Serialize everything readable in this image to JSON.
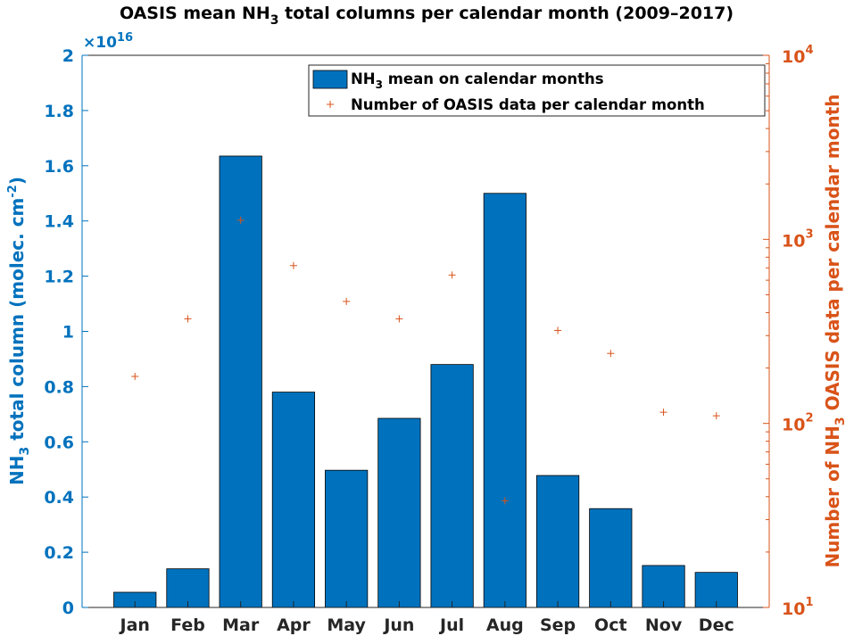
{
  "chart_data": {
    "type": "bar",
    "title": {
      "prefix": "OASIS mean NH",
      "sub": "3",
      "suffix": " total columns per calendar month (2009–2017)"
    },
    "categories": [
      "Jan",
      "Feb",
      "Mar",
      "Apr",
      "May",
      "Jun",
      "Jul",
      "Aug",
      "Sep",
      "Oct",
      "Nov",
      "Dec"
    ],
    "series": [
      {
        "axis": "left",
        "kind": "bar",
        "color": "#0072bd",
        "values": [
          550000000000000.0,
          1400000000000000.0,
          1.635e+16,
          7800000000000000.0,
          4970000000000000.0,
          6850000000000000.0,
          8800000000000000.0,
          1.5e+16,
          4780000000000000.0,
          3580000000000000.0,
          1520000000000000.0,
          1270000000000000.0
        ]
      },
      {
        "axis": "right",
        "kind": "marker",
        "marker": "+",
        "color": "#d95319",
        "values": [
          180,
          370,
          1270,
          720,
          460,
          370,
          640,
          38,
          320,
          240,
          115,
          110
        ]
      }
    ],
    "left_axis": {
      "label_prefix": "NH",
      "label_sub": "3",
      "label_mid": " total column (molec. cm",
      "label_sup": "-2",
      "label_suffix": ")",
      "ylim": [
        0,
        2e+16
      ],
      "ticks": [
        0,
        2000000000000000.0,
        4000000000000000.0,
        6000000000000000.0,
        8000000000000000.0,
        1e+16,
        1.2e+16,
        1.4e+16,
        1.6e+16,
        1.8e+16,
        2e+16
      ],
      "tick_labels": [
        "0",
        "0.2",
        "0.4",
        "0.6",
        "0.8",
        "1",
        "1.2",
        "1.4",
        "1.6",
        "1.8",
        "2"
      ],
      "exponent_base": "×10",
      "exponent_power": "16",
      "color": "#0072bd"
    },
    "right_axis": {
      "label_prefix": "Number of NH",
      "label_sub": "3",
      "label_suffix": " OASIS data per calendar month",
      "scale": "log",
      "ylim": [
        10,
        10000
      ],
      "major_ticks": [
        10,
        100,
        1000,
        10000
      ],
      "tick_labels": [
        {
          "base": "10",
          "exp": "1"
        },
        {
          "base": "10",
          "exp": "2"
        },
        {
          "base": "10",
          "exp": "3"
        },
        {
          "base": "10",
          "exp": "4"
        }
      ],
      "color": "#d95319"
    },
    "legend": {
      "placement": "top-right",
      "entries": [
        {
          "prefix": "NH",
          "sub": "3",
          "suffix": " mean on calendar months",
          "swatch": "bar"
        },
        {
          "prefix": "Number of OASIS data per calendar month",
          "sub": "",
          "suffix": "",
          "swatch": "plus"
        }
      ]
    },
    "grid": false
  }
}
